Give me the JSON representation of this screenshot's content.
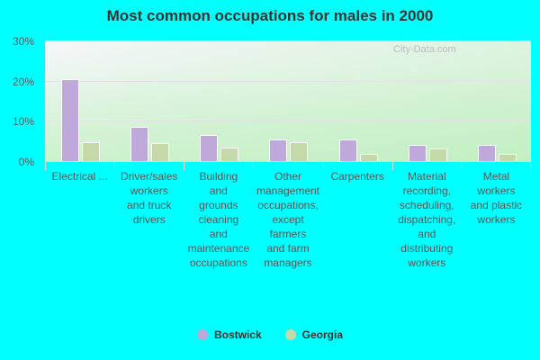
{
  "chart_data": {
    "type": "bar",
    "title": "Most common occupations for males in 2000",
    "xlabel": "",
    "ylabel": "",
    "ylim": [
      0,
      30
    ],
    "yticks": [
      "0%",
      "10%",
      "20%",
      "30%"
    ],
    "grid": true,
    "legend_position": "bottom",
    "categories": [
      "Electrical ...",
      "Driver/sales workers and truck drivers",
      "Building and grounds cleaning and maintenance occupations",
      "Other management occupations, except farmers and farm managers",
      "Carpenters",
      "Material recording, scheduling, dispatching, and distributing workers",
      "Metal workers and plastic workers"
    ],
    "category_labels_wrapped": [
      "Electrical ...",
      "Driver/sales\nworkers\nand truck\ndrivers",
      "Building\nand\ngrounds\ncleaning\nand\nmaintenance\noccupations",
      "Other\nmanagement\noccupations,\nexcept\nfarmers\nand farm\nmanagers",
      "Carpenters",
      "Material\nrecording,\nscheduling,\ndispatching,\nand\ndistributing\nworkers",
      "Metal\nworkers\nand plastic\nworkers"
    ],
    "series": [
      {
        "name": "Bostwick",
        "color": "#bea9da",
        "values": [
          20.4,
          8.5,
          6.4,
          5.3,
          5.3,
          4.1,
          4.1
        ]
      },
      {
        "name": "Georgia",
        "color": "#c4d8a8",
        "values": [
          4.7,
          4.4,
          3.3,
          4.7,
          1.9,
          3.1,
          1.9
        ]
      }
    ]
  },
  "watermark": "City-Data.com",
  "legend": [
    {
      "label": "Bostwick",
      "color": "#bea9da"
    },
    {
      "label": "Georgia",
      "color": "#c4d8a8"
    }
  ]
}
